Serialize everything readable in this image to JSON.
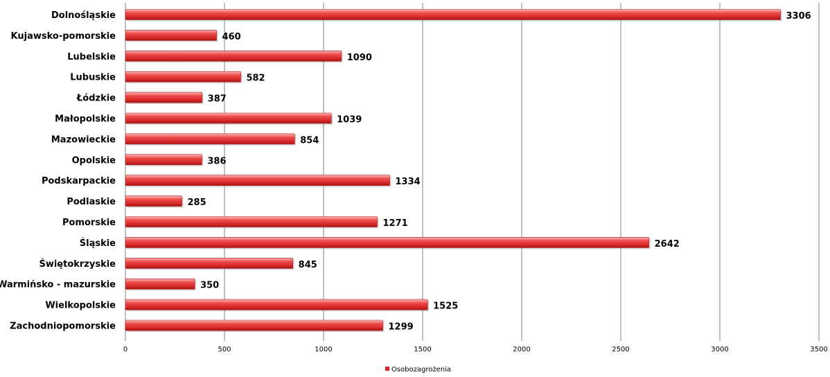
{
  "chart_data": {
    "type": "bar",
    "orientation": "horizontal",
    "categories": [
      "Dolnośląskie",
      "Kujawsko-pomorskie",
      "Lubelskie",
      "Lubuskie",
      "Łódzkie",
      "Małopolskie",
      "Mazowieckie",
      "Opolskie",
      "Podskarpackie",
      "Podlaskie",
      "Pomorskie",
      "Śląskie",
      "Świętokrzyskie",
      "Warmińsko - mazurskie",
      "Wielkopolskie",
      "Zachodniopomorskie"
    ],
    "series": [
      {
        "name": "Osobozagrożenia",
        "values": [
          3306,
          460,
          1090,
          582,
          387,
          1039,
          854,
          386,
          1334,
          285,
          1271,
          2642,
          845,
          350,
          1525,
          1299
        ],
        "data_labels": [
          "3306",
          "460",
          "1090",
          "582",
          "387",
          "1039",
          "854",
          "386",
          "1334",
          "285",
          "1271",
          "2642",
          "845",
          "350",
          "1525",
          "1299"
        ]
      }
    ],
    "xlim": [
      0,
      3500
    ],
    "xticks": [
      0,
      500,
      1000,
      1500,
      2000,
      2500,
      3000,
      3500
    ],
    "xtick_labels": [
      "0",
      "500",
      "1000",
      "1500",
      "2000",
      "2500",
      "3000",
      "3500"
    ],
    "grid": true,
    "legend_position": "bottom",
    "title": "",
    "xlabel": "",
    "ylabel": "",
    "colors": {
      "bar": "#e03030",
      "bar_dark": "#b01818",
      "bar_light": "#f7a8a8",
      "grid": "#808080"
    }
  }
}
